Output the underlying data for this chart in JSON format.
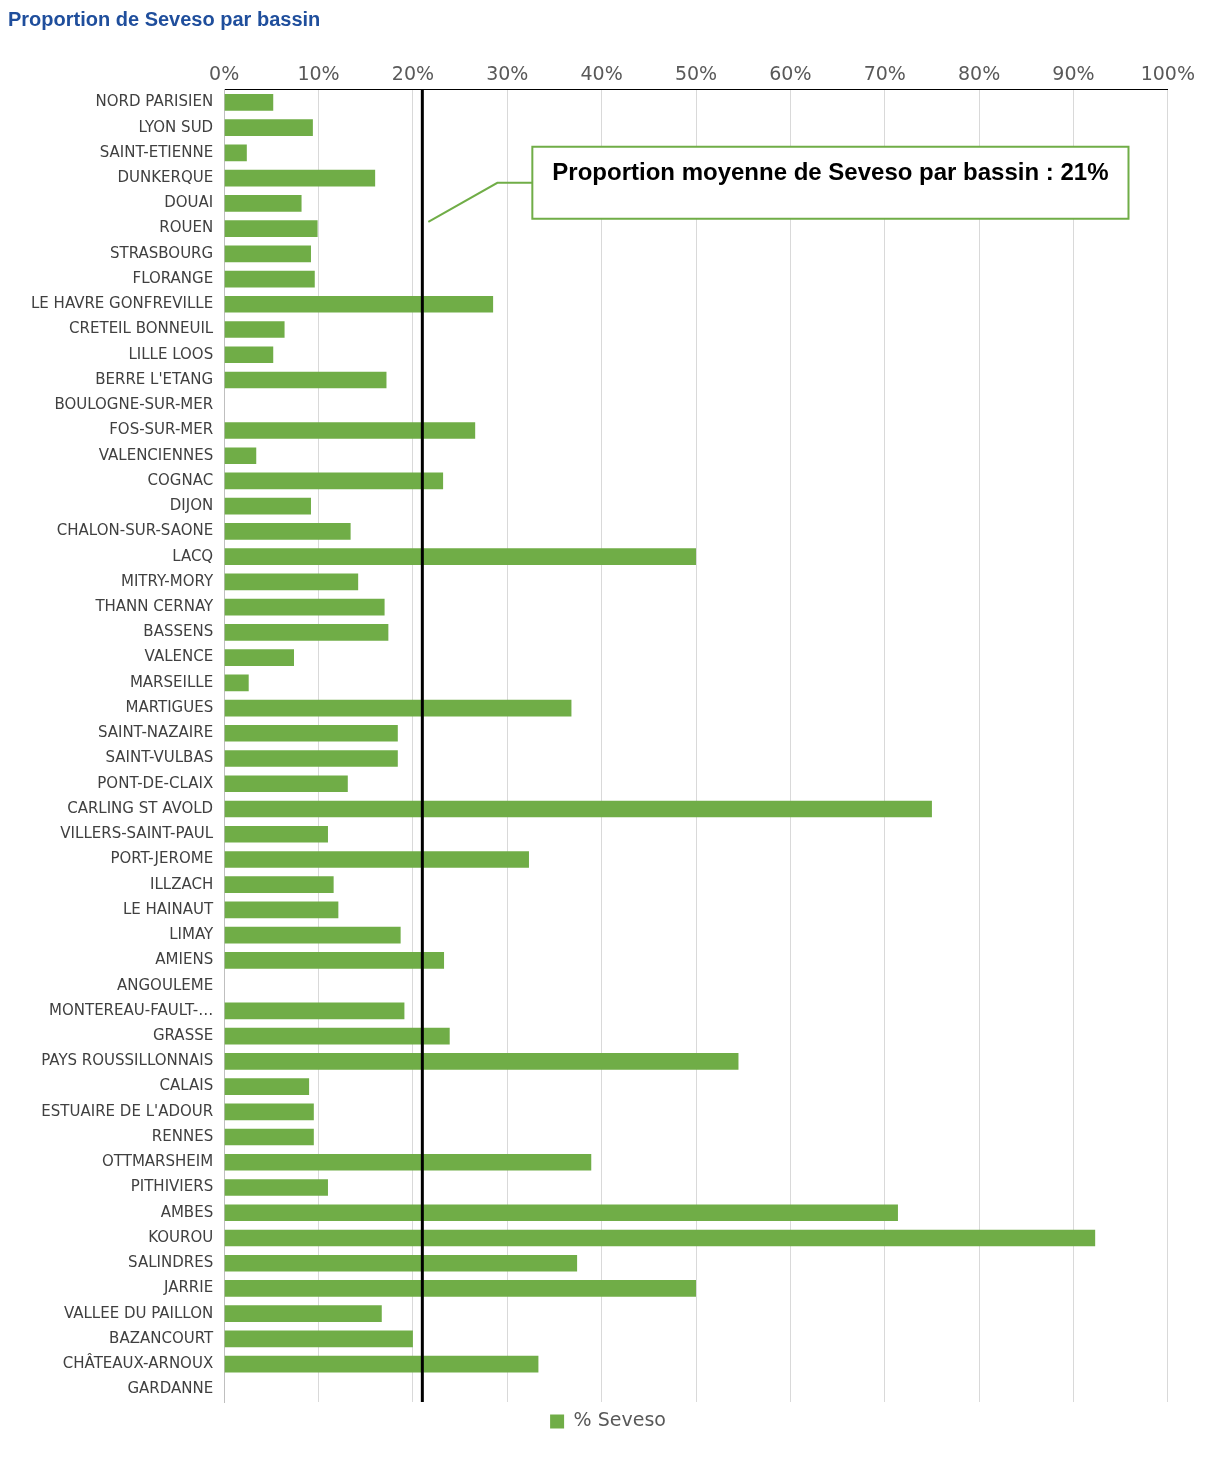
{
  "chart_data": {
    "type": "bar",
    "orientation": "horizontal",
    "title": "Proportion de Seveso par bassin",
    "categories": [
      "NORD PARISIEN",
      "LYON SUD",
      "SAINT-ETIENNE",
      "DUNKERQUE",
      "DOUAI",
      "ROUEN",
      "STRASBOURG",
      "FLORANGE",
      "LE HAVRE GONFREVILLE",
      "CRETEIL BONNEUIL",
      "LILLE LOOS",
      "BERRE L'ETANG",
      "BOULOGNE-SUR-MER",
      "FOS-SUR-MER",
      "VALENCIENNES",
      "COGNAC",
      "DIJON",
      "CHALON-SUR-SAONE",
      "LACQ",
      "MITRY-MORY",
      "THANN CERNAY",
      "BASSENS",
      "VALENCE",
      "MARSEILLE",
      "MARTIGUES",
      "SAINT-NAZAIRE",
      "SAINT-VULBAS",
      "PONT-DE-CLAIX",
      "CARLING ST AVOLD",
      "VILLERS-SAINT-PAUL",
      "PORT-JEROME",
      "ILLZACH",
      "LE HAINAUT",
      "LIMAY",
      "AMIENS",
      "ANGOULEME",
      "MONTEREAU-FAULT-…",
      "GRASSE",
      "PAYS ROUSSILLONNAIS",
      "CALAIS",
      "ESTUAIRE DE L'ADOUR",
      "RENNES",
      "OTTMARSHEIM",
      "PITHIVIERS",
      "AMBES",
      "KOUROU",
      "SALINDRES",
      "JARRIE",
      "VALLEE DU PAILLON",
      "BAZANCOURT",
      "CHÂTEAUX-ARNOUX",
      "GARDANNE"
    ],
    "series": [
      {
        "name": "% Seveso",
        "color": "#70ad47",
        "values": [
          5.2,
          9.4,
          2.4,
          16,
          8.2,
          9.9,
          9.2,
          9.6,
          28.5,
          6.4,
          5.2,
          17.2,
          0,
          26.6,
          3.4,
          23.2,
          9.2,
          13.4,
          50,
          14.2,
          17,
          17.4,
          7.4,
          2.6,
          36.8,
          18.4,
          18.4,
          13.1,
          75,
          11,
          32.3,
          11.6,
          12.1,
          18.7,
          23.3,
          0,
          19.1,
          23.9,
          54.5,
          9,
          9.5,
          9.5,
          38.9,
          11,
          71.4,
          92.3,
          37.4,
          50,
          16.7,
          20,
          33.3,
          0
        ]
      }
    ],
    "xlim": [
      0,
      100
    ],
    "xticks": [
      {
        "value": 0,
        "label": "0%"
      },
      {
        "value": 10,
        "label": "10%"
      },
      {
        "value": 20,
        "label": "20%"
      },
      {
        "value": 30,
        "label": "30%"
      },
      {
        "value": 40,
        "label": "40%"
      },
      {
        "value": 50,
        "label": "50%"
      },
      {
        "value": 60,
        "label": "60%"
      },
      {
        "value": 70,
        "label": "70%"
      },
      {
        "value": 80,
        "label": "80%"
      },
      {
        "value": 90,
        "label": "90%"
      },
      {
        "value": 100,
        "label": "100%"
      }
    ],
    "ref_lines": [
      {
        "axis": "x",
        "value": 21,
        "label": "Proportion moyenne de Seveso par bassin : 21%",
        "color": "#000000"
      }
    ],
    "grid": "x",
    "legend": "bottom"
  }
}
